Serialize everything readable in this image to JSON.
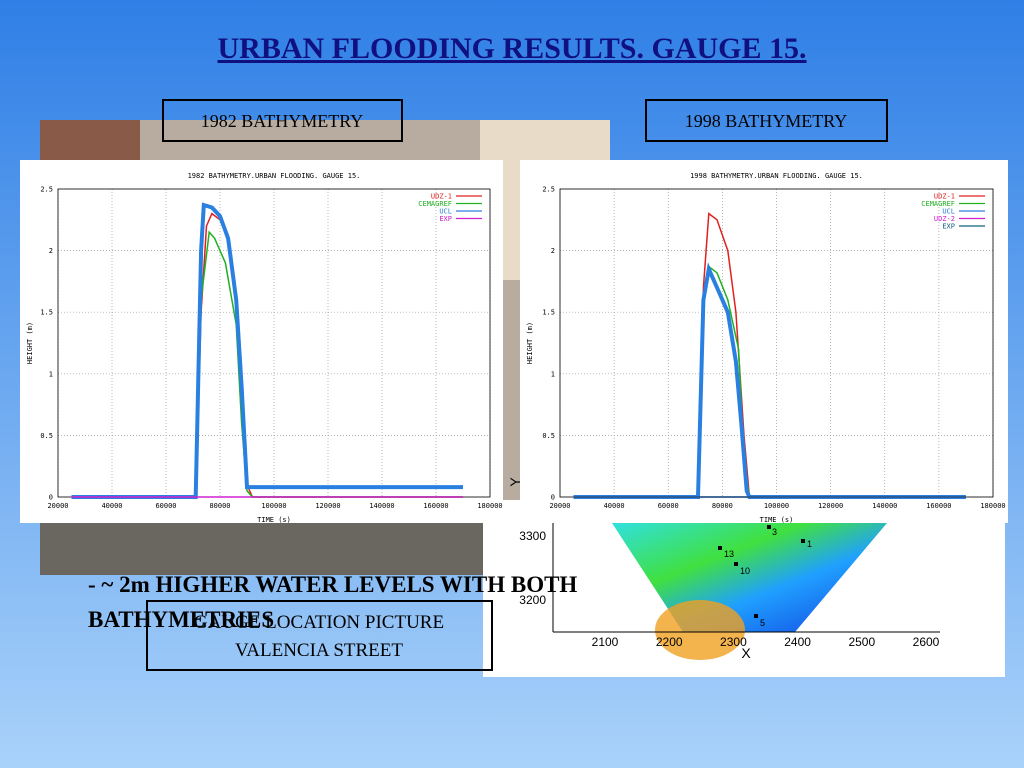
{
  "title": "URBAN FLOODING RESULTS. GAUGE 15.",
  "label_1982": "1982 BATHYMETRY",
  "label_1998": "1998 BATHYMETRY",
  "bullet": "- ~ 2m HIGHER WATER LEVELS WITH BOTH BATHYMETRIES",
  "picture_box": {
    "line1": "GAUGE LOCATION PICTURE",
    "line2": "VALENCIA STREET"
  },
  "map": {
    "xlabel": "X",
    "ylabel": "Y",
    "xticks": [
      2100,
      2200,
      2300,
      2400,
      2500,
      2600
    ],
    "yticks": [
      3300,
      3200
    ],
    "points": [
      "3",
      "1",
      "13",
      "10",
      "5"
    ]
  },
  "chart_data": [
    {
      "type": "line",
      "title": "1982 BATHYMETRY.URBAN FLOODING. GAUGE 15.",
      "xlabel": "TIME (s)",
      "ylabel": "HEIGHT (m)",
      "xlim": [
        20000,
        180000
      ],
      "ylim": [
        0,
        2.5
      ],
      "xticks": [
        20000,
        40000,
        60000,
        80000,
        100000,
        120000,
        140000,
        160000,
        180000
      ],
      "yticks": [
        0,
        0.5,
        1,
        1.5,
        2,
        2.5
      ],
      "grid": true,
      "legend": "upper right",
      "series": [
        {
          "name": "UDZ-1",
          "color": "#e02020",
          "x": [
            25000,
            71000,
            73000,
            75000,
            77000,
            80000,
            83000,
            86000,
            88000,
            90000,
            92000,
            170000
          ],
          "values": [
            0,
            0,
            1.5,
            2.2,
            2.3,
            2.25,
            2.1,
            1.6,
            0.8,
            0.1,
            0,
            0
          ]
        },
        {
          "name": "CEMAGREF",
          "color": "#20b020",
          "x": [
            71000,
            73000,
            76000,
            78000,
            82000,
            86000,
            88000,
            90000,
            92000,
            170000
          ],
          "values": [
            0,
            1.6,
            2.15,
            2.1,
            1.9,
            1.4,
            0.6,
            0.05,
            0,
            0
          ]
        },
        {
          "name": "UCL",
          "color": "#2a80e0",
          "x": [
            25000,
            71000,
            73000,
            74000,
            77000,
            80000,
            83000,
            86000,
            88000,
            90000,
            170000
          ],
          "values": [
            0,
            0,
            2.0,
            2.37,
            2.35,
            2.28,
            2.1,
            1.6,
            0.9,
            0.08,
            0.08
          ]
        },
        {
          "name": "EXP",
          "color": "#d020d0",
          "x": [
            25000,
            170000
          ],
          "values": [
            0,
            0
          ]
        }
      ]
    },
    {
      "type": "line",
      "title": "1998 BATHYMETRY.URBAN FLOODING. GAUGE 15.",
      "xlabel": "TIME (s)",
      "ylabel": "HEIGHT (m)",
      "xlim": [
        20000,
        180000
      ],
      "ylim": [
        0,
        2.5
      ],
      "xticks": [
        20000,
        40000,
        60000,
        80000,
        100000,
        120000,
        140000,
        160000,
        180000
      ],
      "yticks": [
        0,
        0.5,
        1,
        1.5,
        2,
        2.5
      ],
      "grid": true,
      "legend": "upper right",
      "series": [
        {
          "name": "UDZ-1",
          "color": "#e02020",
          "x": [
            71000,
            73000,
            75000,
            78000,
            82000,
            85000,
            88000,
            90000,
            170000
          ],
          "values": [
            0,
            1.7,
            2.3,
            2.25,
            2.0,
            1.5,
            0.5,
            0,
            0
          ]
        },
        {
          "name": "CEMAGREF",
          "color": "#20b020",
          "x": [
            71000,
            73000,
            75000,
            78000,
            82000,
            86000,
            88000,
            90000,
            170000
          ],
          "values": [
            0,
            1.6,
            1.87,
            1.82,
            1.6,
            1.2,
            0.3,
            0,
            0
          ]
        },
        {
          "name": "UCL",
          "color": "#2a80e0",
          "x": [
            25000,
            71000,
            73000,
            75000,
            78000,
            82000,
            85000,
            87000,
            89000,
            90000,
            170000
          ],
          "values": [
            0,
            0,
            1.6,
            1.85,
            1.7,
            1.5,
            1.1,
            0.6,
            0.05,
            0,
            0
          ]
        },
        {
          "name": "UDZ-2",
          "color": "#d020d0",
          "x": [
            25000,
            170000
          ],
          "values": [
            0,
            0
          ]
        },
        {
          "name": "EXP",
          "color": "#106080",
          "x": [
            25000,
            170000
          ],
          "values": [
            0,
            0
          ]
        }
      ]
    }
  ]
}
